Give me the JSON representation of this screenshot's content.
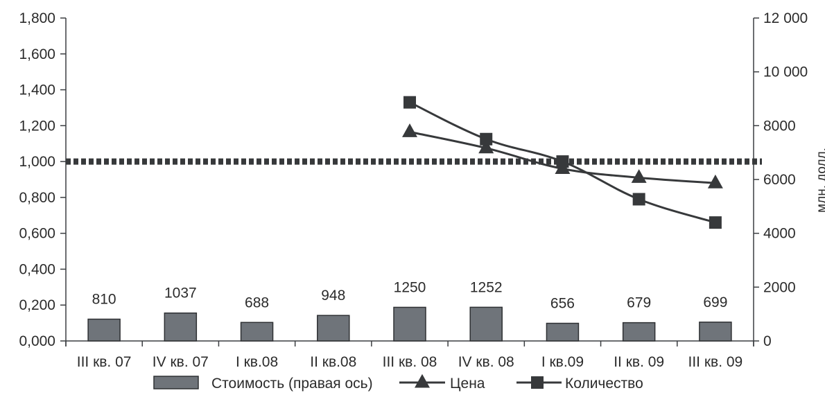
{
  "chart_data": {
    "type": "bar",
    "categories": [
      "III кв. 07",
      "IV кв. 07",
      "I кв.08",
      "II кв.08",
      "III кв. 08",
      "IV кв. 08",
      "I кв.09",
      "II кв. 09",
      "III кв. 09"
    ],
    "series": [
      {
        "name": "Стоимость (правая ось)",
        "type": "bar",
        "axis": "right",
        "color": "#6f747a",
        "values": [
          810,
          1037,
          688,
          948,
          1250,
          1252,
          656,
          679,
          699
        ],
        "data_labels": [
          "810",
          "1037",
          "688",
          "948",
          "1250",
          "1252",
          "656",
          "679",
          "699"
        ]
      },
      {
        "name": "Цена",
        "type": "line",
        "axis": "left",
        "marker": "triangle",
        "color": "#37393b",
        "values": [
          null,
          null,
          null,
          null,
          1.165,
          1.075,
          0.96,
          0.91,
          0.88
        ]
      },
      {
        "name": "Количество",
        "type": "line",
        "axis": "left",
        "marker": "square",
        "color": "#37393b",
        "values": [
          null,
          null,
          null,
          null,
          1.33,
          1.125,
          1.0,
          0.79,
          0.66
        ]
      }
    ],
    "reference_line": {
      "value": 1.0,
      "axis": "left",
      "style": "dotted",
      "color": "#37393b"
    },
    "left_axis": {
      "min": 0,
      "max": 1.8,
      "ticks": [
        0,
        0.2,
        0.4,
        0.6,
        0.8,
        1.0,
        1.2,
        1.4,
        1.6,
        1.8
      ],
      "tick_labels": [
        "0,000",
        "0,200",
        "0,400",
        "0,600",
        "0,800",
        "1,000",
        "1,200",
        "1,400",
        "1,600",
        "1,800"
      ]
    },
    "right_axis": {
      "min": 0,
      "max": 12000,
      "ticks": [
        0,
        2000,
        4000,
        6000,
        8000,
        10000,
        12000
      ],
      "tick_labels": [
        "0",
        "2000",
        "4000",
        "6000",
        "8000",
        "10 000",
        "12 000"
      ],
      "label": "млн. долл."
    },
    "grid": false,
    "legend_position": "bottom",
    "title": ""
  }
}
